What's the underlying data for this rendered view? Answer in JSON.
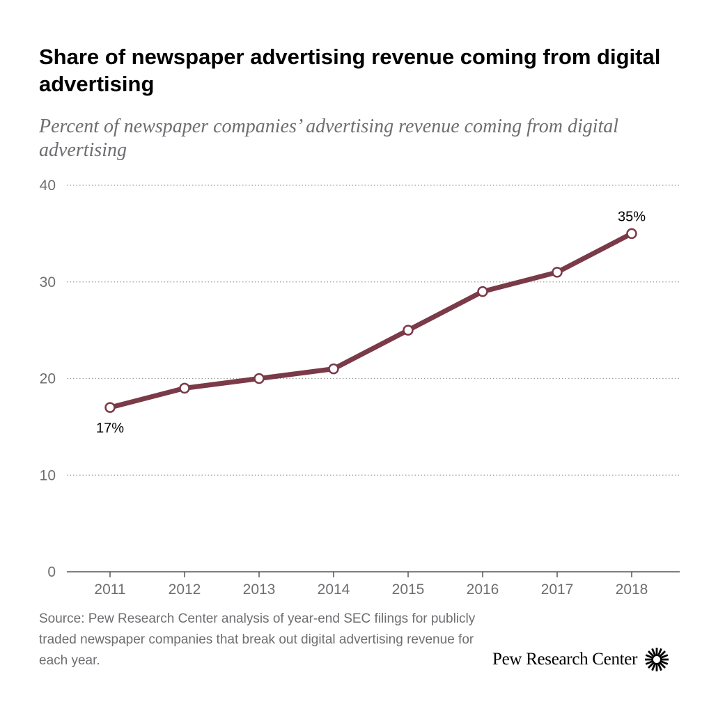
{
  "title": "Share of newspaper advertising revenue coming from digital advertising",
  "subtitle": "Percent of newspaper companies’ advertising revenue coming from digital advertising",
  "source": "Source: Pew Research Center analysis of year-end SEC filings for publicly traded newspaper companies that break out digital advertising revenue for each year.",
  "logo_text": "Pew Research Center",
  "colors": {
    "line": "#7a3a48",
    "grid": "#9a9a9a",
    "axis_text": "#6d6e71"
  },
  "chart_data": {
    "type": "line",
    "title": "Share of newspaper advertising revenue coming from digital advertising",
    "subtitle": "Percent of newspaper companies’ advertising revenue coming from digital advertising",
    "xlabel": "",
    "ylabel": "",
    "categories": [
      "2011",
      "2012",
      "2013",
      "2014",
      "2015",
      "2016",
      "2017",
      "2018"
    ],
    "series": [
      {
        "values": [
          17,
          19,
          20,
          21,
          25,
          29,
          31,
          35
        ]
      }
    ],
    "ylim": [
      0,
      40
    ],
    "yticks": [
      "0",
      "10",
      "20",
      "30",
      "40"
    ],
    "grid": true,
    "annotations": [
      {
        "index": 0,
        "text": "17%",
        "position": "below"
      },
      {
        "index": 7,
        "text": "35%",
        "position": "above"
      }
    ]
  }
}
